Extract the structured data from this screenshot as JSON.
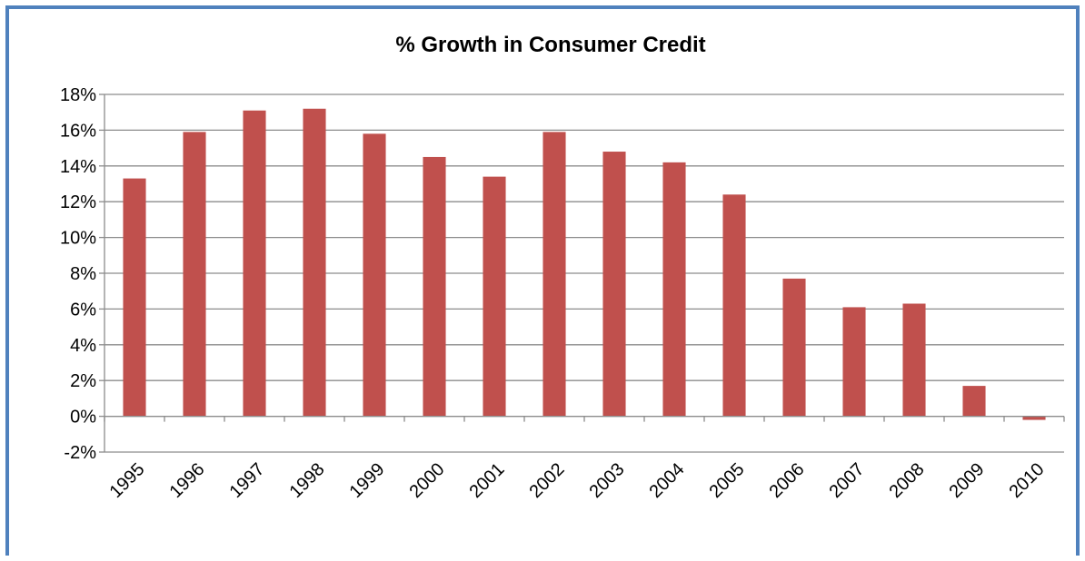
{
  "chart_data": {
    "type": "bar",
    "title": "% Growth in Consumer Credit",
    "xlabel": "",
    "ylabel": "",
    "categories": [
      "1995",
      "1996",
      "1997",
      "1998",
      "1999",
      "2000",
      "2001",
      "2002",
      "2003",
      "2004",
      "2005",
      "2006",
      "2007",
      "2008",
      "2009",
      "2010"
    ],
    "values": [
      13.3,
      15.9,
      17.1,
      17.2,
      15.8,
      14.5,
      13.4,
      15.9,
      14.8,
      14.2,
      12.4,
      7.7,
      6.1,
      6.3,
      1.7,
      -0.2
    ],
    "ylim": [
      -2,
      18
    ],
    "ytick_step": 2,
    "ytick_labels": [
      "-2%",
      "0%",
      "2%",
      "4%",
      "6%",
      "8%",
      "10%",
      "12%",
      "14%",
      "16%",
      "18%"
    ],
    "grid": true,
    "legend": "none",
    "bar_color": "#c0504d",
    "border_color": "#4f81bd"
  }
}
